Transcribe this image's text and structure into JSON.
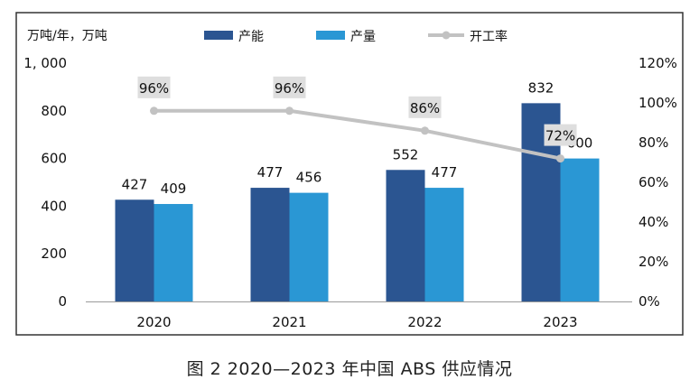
{
  "caption": "图 2  2020—2023 年中国 ABS 供应情况",
  "chart_data": {
    "type": "bar",
    "ylabel_left": "万吨/年，万吨",
    "categories": [
      "2020",
      "2021",
      "2022",
      "2023"
    ],
    "ylim_left": [
      0,
      1000
    ],
    "yticks_left": [
      0,
      200,
      400,
      600,
      800,
      1000
    ],
    "yticklabels_left": [
      "0",
      "200",
      "400",
      "600",
      "800",
      "1, 000"
    ],
    "ylim_right": [
      0,
      120
    ],
    "yticklabels_right": [
      "0%",
      "20%",
      "40%",
      "60%",
      "80%",
      "100%",
      "120%"
    ],
    "grid": false,
    "legend_position": "top",
    "series": [
      {
        "name": "产能",
        "type": "bar",
        "axis": "left",
        "values": [
          427,
          477,
          552,
          832
        ],
        "labels": [
          "427",
          "477",
          "552",
          "832"
        ],
        "color": "#2b5591"
      },
      {
        "name": "产量",
        "type": "bar",
        "axis": "left",
        "values": [
          409,
          456,
          477,
          600
        ],
        "labels": [
          "409",
          "456",
          "477",
          "600"
        ],
        "color": "#2a97d4"
      },
      {
        "name": "开工率",
        "type": "line",
        "axis": "right",
        "values": [
          96,
          96,
          86,
          72
        ],
        "labels": [
          "96%",
          "96%",
          "86%",
          "72%"
        ],
        "color": "#c2c2c2"
      }
    ]
  }
}
